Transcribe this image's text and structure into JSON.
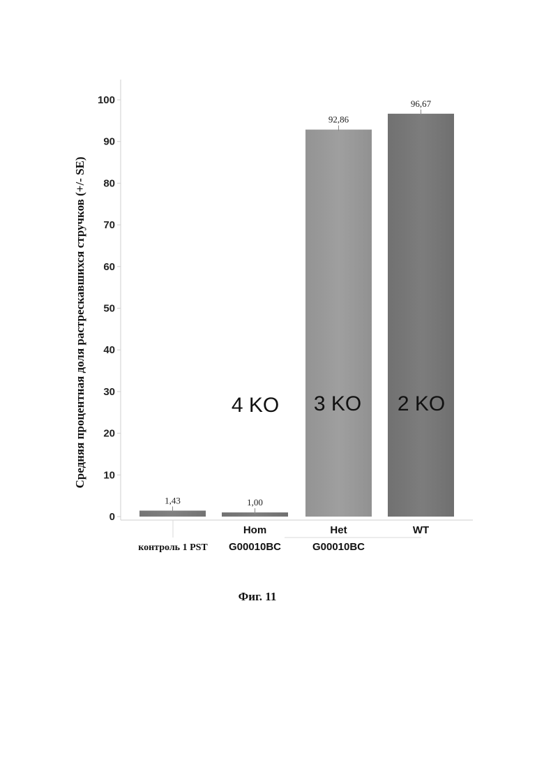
{
  "chart_data": {
    "type": "bar",
    "ylabel": "Средняя процентная доля растрескавшихся стручков (+/- SE)",
    "ylim": [
      0,
      100
    ],
    "yticks": [
      "0",
      "10",
      "20",
      "30",
      "40",
      "50",
      "60",
      "70",
      "80",
      "90",
      "100"
    ],
    "categories": [
      {
        "line1": "",
        "line2": "контроль 1 PST",
        "value": 1.43,
        "value_label": "1,43",
        "color": "#7a7a7a"
      },
      {
        "line1": "Hom",
        "line2": "G00010BC",
        "value": 1.0,
        "value_label": "1,00",
        "color": "#777777"
      },
      {
        "line1": "Het",
        "line2": "G00010BC",
        "value": 92.86,
        "value_label": "92,86",
        "color": "#9a9a9a"
      },
      {
        "line1": "WT",
        "line2": "",
        "value": 96.67,
        "value_label": "96,67",
        "color": "#767676"
      }
    ],
    "annotations": [
      "4 KO",
      "3 KO",
      "2 KO"
    ],
    "grid": false,
    "legend": "none"
  },
  "figure_caption": "Фиг. 11"
}
